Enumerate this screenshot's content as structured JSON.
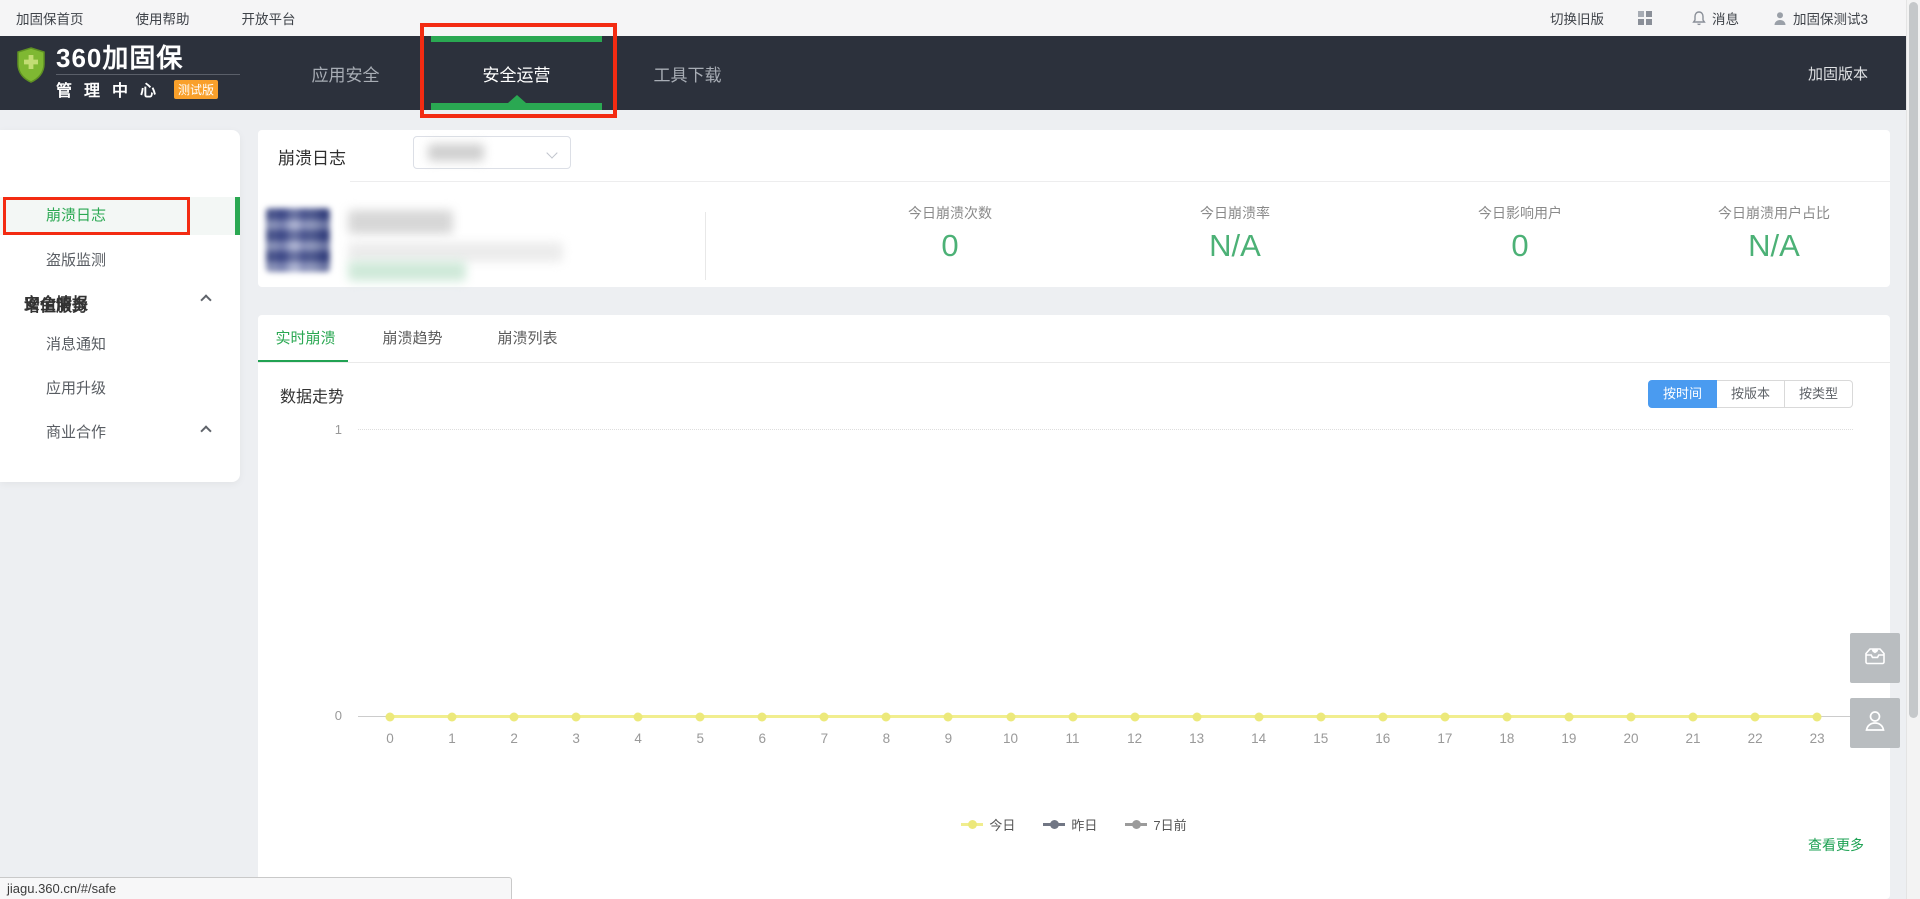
{
  "topbar": {
    "links": [
      "加固保首页",
      "使用帮助",
      "开放平台"
    ],
    "switch_old_version": "切换旧版",
    "management_center": "管理中心",
    "messages": "消息",
    "account_name": "加固保测试3"
  },
  "navbar": {
    "logo_title": "360加固保",
    "logo_subtitle": "管理中心",
    "logo_badge": "测试版",
    "tabs": [
      {
        "label": "应用安全",
        "active": false
      },
      {
        "label": "安全运营",
        "active": true
      },
      {
        "label": "工具下载",
        "active": false
      }
    ],
    "version_link": "加固版本"
  },
  "sidebar": {
    "groups": [
      {
        "label": "安全情报",
        "items": [
          {
            "label": "崩溃日志",
            "active": true
          },
          {
            "label": "盗版监测",
            "active": false
          }
        ]
      },
      {
        "label": "增值服务",
        "items": [
          {
            "label": "消息通知",
            "active": false
          },
          {
            "label": "应用升级",
            "active": false
          },
          {
            "label": "商业合作",
            "active": false
          }
        ]
      }
    ]
  },
  "content": {
    "page_title": "崩溃日志",
    "stats": [
      {
        "label": "今日崩溃次数",
        "value": "0"
      },
      {
        "label": "今日崩溃率",
        "value": "N/A"
      },
      {
        "label": "今日影响用户",
        "value": "0"
      },
      {
        "label": "今日崩溃用户占比",
        "value": "N/A"
      }
    ],
    "tabs": [
      {
        "label": "实时崩溃",
        "active": true
      },
      {
        "label": "崩溃趋势",
        "active": false
      },
      {
        "label": "崩溃列表",
        "active": false
      }
    ],
    "chart_title": "数据走势",
    "filter_buttons": [
      {
        "label": "按时间",
        "active": true
      },
      {
        "label": "按版本",
        "active": false
      },
      {
        "label": "按类型",
        "active": false
      }
    ],
    "view_more": "查看更多"
  },
  "chart_data": {
    "type": "line",
    "title": "数据走势",
    "x": [
      0,
      1,
      2,
      3,
      4,
      5,
      6,
      7,
      8,
      9,
      10,
      11,
      12,
      13,
      14,
      15,
      16,
      17,
      18,
      19,
      20,
      21,
      22,
      23
    ],
    "xlabel": "",
    "ylabel": "",
    "ylim": [
      0,
      1
    ],
    "yticks": [
      0,
      1
    ],
    "grid": "dotted horizontal line at y=1",
    "legend_position": "bottom center",
    "series": [
      {
        "name": "今日",
        "color": "#ece87b",
        "values": [
          0,
          0,
          0,
          0,
          0,
          0,
          0,
          0,
          0,
          0,
          0,
          0,
          0,
          0,
          0,
          0,
          0,
          0,
          0,
          0,
          0,
          0,
          0,
          0
        ]
      },
      {
        "name": "昨日",
        "color": "#717684",
        "values": []
      },
      {
        "name": "7日前",
        "color": "#9b9b9b",
        "values": []
      }
    ],
    "note": "only 今日 series is plotted (flat at 0); 昨日 and 7日前 appear in legend only"
  },
  "browser": {
    "status_link_url": "jiagu.360.cn/#/safe"
  },
  "colors": {
    "accent_green": "#2aa852",
    "stat_green": "#4cb176",
    "annotation_red": "#f32b12",
    "active_button_blue": "#4a9bf0",
    "series_yellow": "#ece87b",
    "navbar_dark": "#2c313c",
    "badge_orange": "#f9a02b"
  }
}
